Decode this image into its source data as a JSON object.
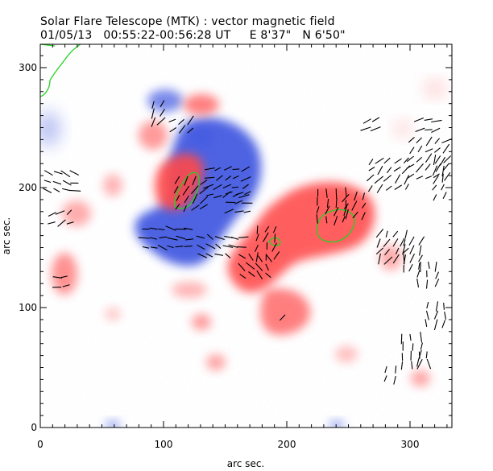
{
  "header": {
    "line1": "Solar Flare Telescope (MTK) : vector magnetic field",
    "line2": "01/05/13   00:55:22-00:56:28 UT     E 8'37\"   N 6'50\""
  },
  "axes": {
    "xlabel": "arc sec.",
    "ylabel": "arc sec.",
    "x_ticks": [
      "0",
      "100",
      "200",
      "300"
    ],
    "y_ticks": [
      "0",
      "100",
      "200",
      "300"
    ],
    "xlim": [
      0,
      335
    ],
    "ylim": [
      0,
      315
    ]
  },
  "colors": {
    "positive_polarity": "#ff4a4a",
    "negative_polarity": "#3f57e0",
    "contour": "#22d222",
    "vectors": "#000000"
  }
}
